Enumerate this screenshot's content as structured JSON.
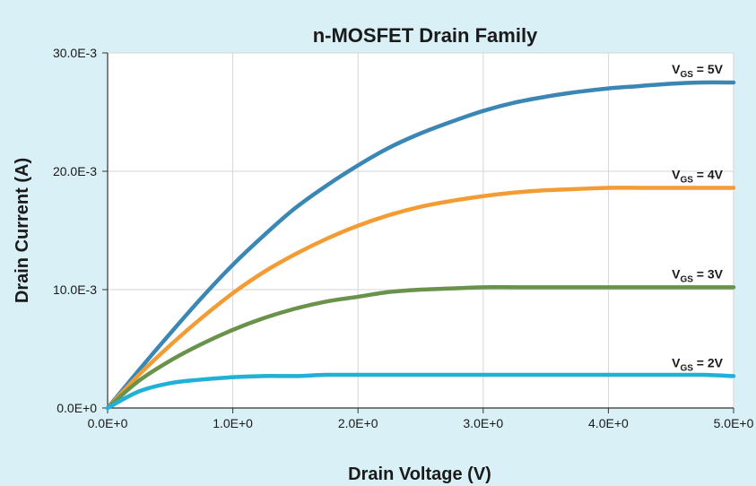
{
  "chart_data": {
    "type": "line",
    "title": "n-MOSFET Drain Family",
    "xlabel": "Drain Voltage (V)",
    "ylabel": "Drain Current (A)",
    "xlim": [
      0,
      5
    ],
    "ylim": [
      0,
      0.03
    ],
    "grid": true,
    "x_ticks": [
      {
        "value": 0,
        "label": "0.0E+0"
      },
      {
        "value": 1,
        "label": "1.0E+0"
      },
      {
        "value": 2,
        "label": "2.0E+0"
      },
      {
        "value": 3,
        "label": "3.0E+0"
      },
      {
        "value": 4,
        "label": "4.0E+0"
      },
      {
        "value": 5,
        "label": "5.0E+0"
      }
    ],
    "y_ticks": [
      {
        "value": 0,
        "label": "0.0E+0"
      },
      {
        "value": 0.01,
        "label": "10.0E-3"
      },
      {
        "value": 0.02,
        "label": "20.0E-3"
      },
      {
        "value": 0.03,
        "label": "30.0E-3"
      }
    ],
    "x": [
      0,
      0.25,
      0.5,
      0.75,
      1.0,
      1.25,
      1.5,
      1.75,
      2.0,
      2.25,
      2.5,
      2.75,
      3.0,
      3.25,
      3.5,
      3.75,
      4.0,
      4.25,
      4.5,
      4.75,
      5.0
    ],
    "series": [
      {
        "label_main": "V",
        "label_sub": "GS",
        "label_tail": " = 5V",
        "color": "#3a87b5",
        "values": [
          0,
          0.0032,
          0.0063,
          0.0093,
          0.0121,
          0.0146,
          0.0169,
          0.0188,
          0.0205,
          0.022,
          0.0232,
          0.0242,
          0.0251,
          0.0258,
          0.0263,
          0.0267,
          0.027,
          0.0272,
          0.0274,
          0.0275,
          0.0275
        ]
      },
      {
        "label_main": "V",
        "label_sub": "GS",
        "label_tail": " = 4V",
        "color": "#f39c34",
        "values": [
          0,
          0.0028,
          0.0053,
          0.0076,
          0.0097,
          0.0115,
          0.013,
          0.0143,
          0.0154,
          0.0163,
          0.017,
          0.0175,
          0.0179,
          0.0182,
          0.0184,
          0.0185,
          0.0186,
          0.0186,
          0.0186,
          0.0186,
          0.0186
        ]
      },
      {
        "label_main": "V",
        "label_sub": "GS",
        "label_tail": " = 3V",
        "color": "#69924a",
        "values": [
          0,
          0.0023,
          0.004,
          0.0054,
          0.0066,
          0.0076,
          0.0084,
          0.009,
          0.0094,
          0.0098,
          0.01,
          0.0101,
          0.0102,
          0.0102,
          0.0102,
          0.0102,
          0.0102,
          0.0102,
          0.0102,
          0.0102,
          0.0102
        ]
      },
      {
        "label_main": "V",
        "label_sub": "GS",
        "label_tail": " = 2V",
        "color": "#22b1d6",
        "values": [
          0,
          0.0014,
          0.0021,
          0.0024,
          0.0026,
          0.0027,
          0.0027,
          0.0028,
          0.0028,
          0.0028,
          0.0028,
          0.0028,
          0.0028,
          0.0028,
          0.0028,
          0.0028,
          0.0028,
          0.0028,
          0.0028,
          0.0028,
          0.0027
        ]
      }
    ]
  }
}
